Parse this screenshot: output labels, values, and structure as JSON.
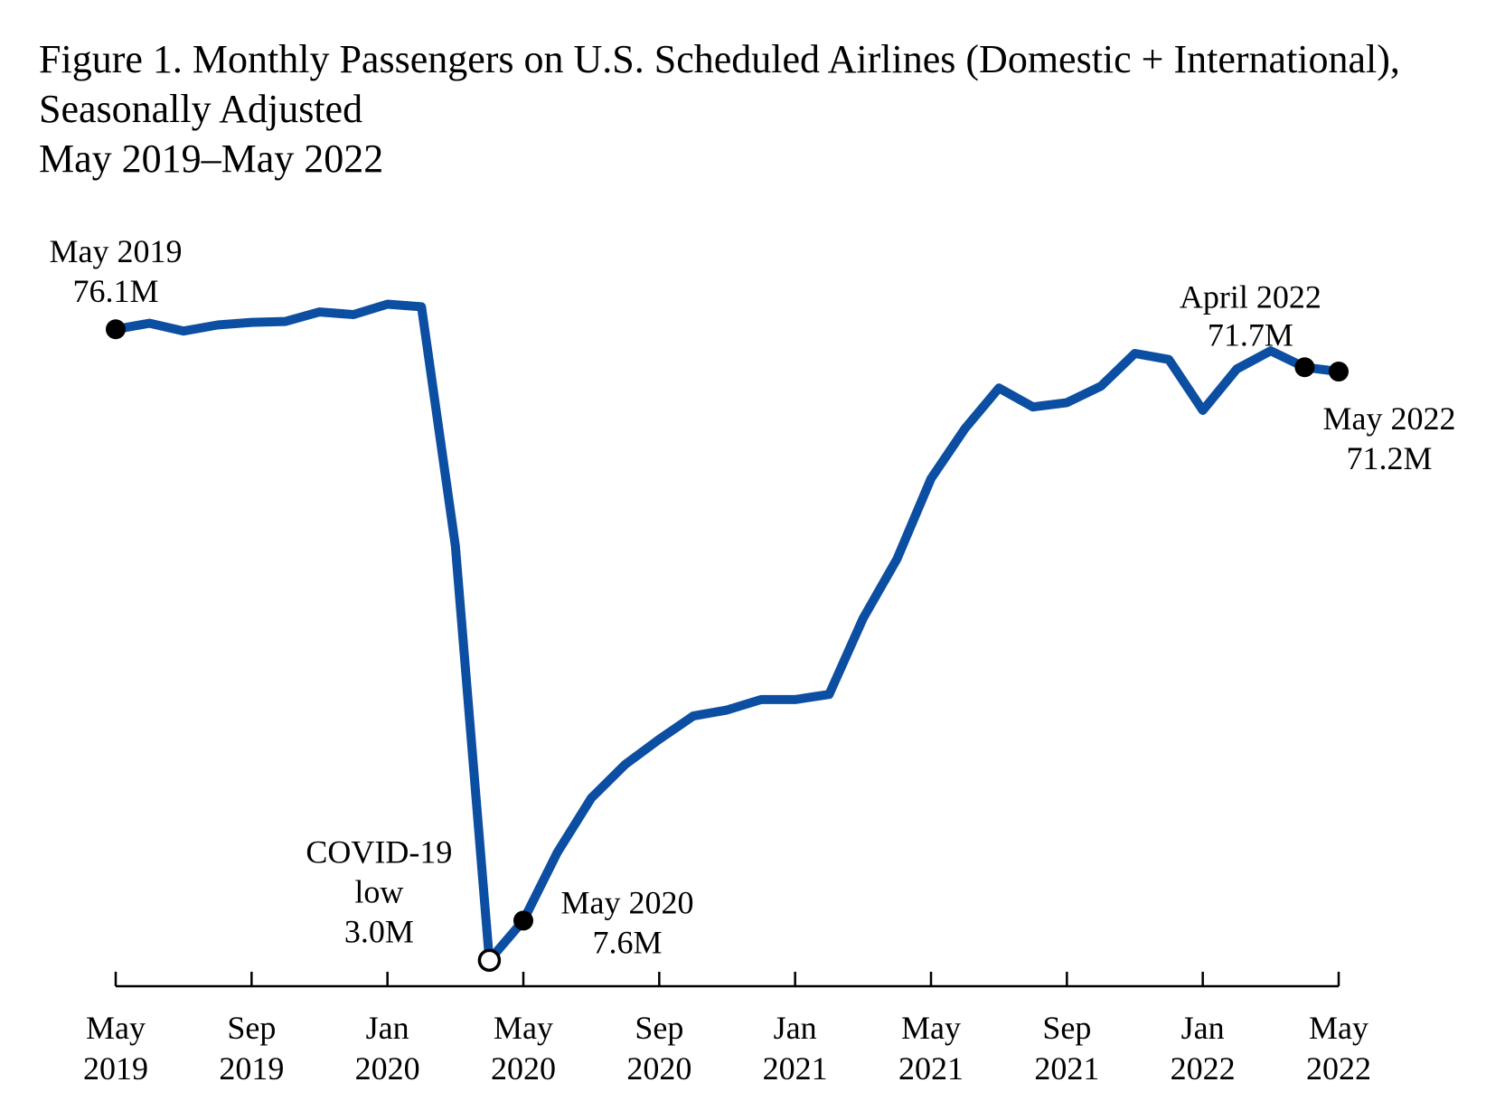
{
  "title": {
    "line1": "Figure 1. Monthly Passengers on U.S. Scheduled Airlines (Domestic + International),",
    "line2": "Seasonally Adjusted",
    "line3": "May 2019–May 2022"
  },
  "colors": {
    "series_line": "#0b4ea2",
    "marker_filled": "#000000",
    "marker_hollow_fill": "#ffffff",
    "axis": "#000000"
  },
  "chart_data": {
    "type": "line",
    "x": [
      "2019-05",
      "2019-06",
      "2019-07",
      "2019-08",
      "2019-09",
      "2019-10",
      "2019-11",
      "2019-12",
      "2020-01",
      "2020-02",
      "2020-03",
      "2020-04",
      "2020-05",
      "2020-06",
      "2020-07",
      "2020-08",
      "2020-09",
      "2020-10",
      "2020-11",
      "2020-12",
      "2021-01",
      "2021-02",
      "2021-03",
      "2021-04",
      "2021-05",
      "2021-06",
      "2021-07",
      "2021-08",
      "2021-09",
      "2021-10",
      "2021-11",
      "2021-12",
      "2022-01",
      "2022-02",
      "2022-03",
      "2022-04",
      "2022-05"
    ],
    "series": [
      {
        "name": "",
        "values": [
          76.1,
          76.8,
          75.9,
          76.6,
          76.9,
          77.0,
          78.1,
          77.8,
          79.0,
          78.7,
          51.0,
          3.0,
          7.6,
          15.5,
          21.8,
          25.7,
          28.6,
          31.3,
          32.0,
          33.2,
          33.2,
          33.8,
          42.6,
          49.5,
          58.8,
          64.6,
          69.3,
          67.1,
          67.6,
          69.5,
          73.3,
          72.6,
          66.7,
          71.5,
          73.6,
          71.7,
          71.2
        ]
      }
    ],
    "ylim": [
      0,
      80
    ],
    "xlabel": "",
    "ylabel": "",
    "grid": false,
    "legend": "none",
    "x_ticks": [
      {
        "x": "2019-05",
        "line1": "May",
        "line2": "2019"
      },
      {
        "x": "2019-09",
        "line1": "Sep",
        "line2": "2019"
      },
      {
        "x": "2020-01",
        "line1": "Jan",
        "line2": "2020"
      },
      {
        "x": "2020-05",
        "line1": "May",
        "line2": "2020"
      },
      {
        "x": "2020-09",
        "line1": "Sep",
        "line2": "2020"
      },
      {
        "x": "2021-01",
        "line1": "Jan",
        "line2": "2021"
      },
      {
        "x": "2021-05",
        "line1": "May",
        "line2": "2021"
      },
      {
        "x": "2021-09",
        "line1": "Sep",
        "line2": "2021"
      },
      {
        "x": "2022-01",
        "line1": "Jan",
        "line2": "2022"
      },
      {
        "x": "2022-05",
        "line1": "May",
        "line2": "2022"
      }
    ],
    "annotations": [
      {
        "x": "2019-05",
        "marker": "filled",
        "lines": [
          "May 2019",
          "76.1M"
        ]
      },
      {
        "x": "2020-04",
        "marker": "hollow",
        "lines": [
          "COVID-19",
          "low",
          "3.0M"
        ]
      },
      {
        "x": "2020-05",
        "marker": "filled",
        "lines": [
          "May 2020",
          "7.6M"
        ]
      },
      {
        "x": "2022-04",
        "marker": "filled",
        "lines": [
          "April 2022",
          "71.7M"
        ]
      },
      {
        "x": "2022-05",
        "marker": "filled",
        "lines": [
          "May 2022",
          "71.2M"
        ]
      }
    ]
  }
}
